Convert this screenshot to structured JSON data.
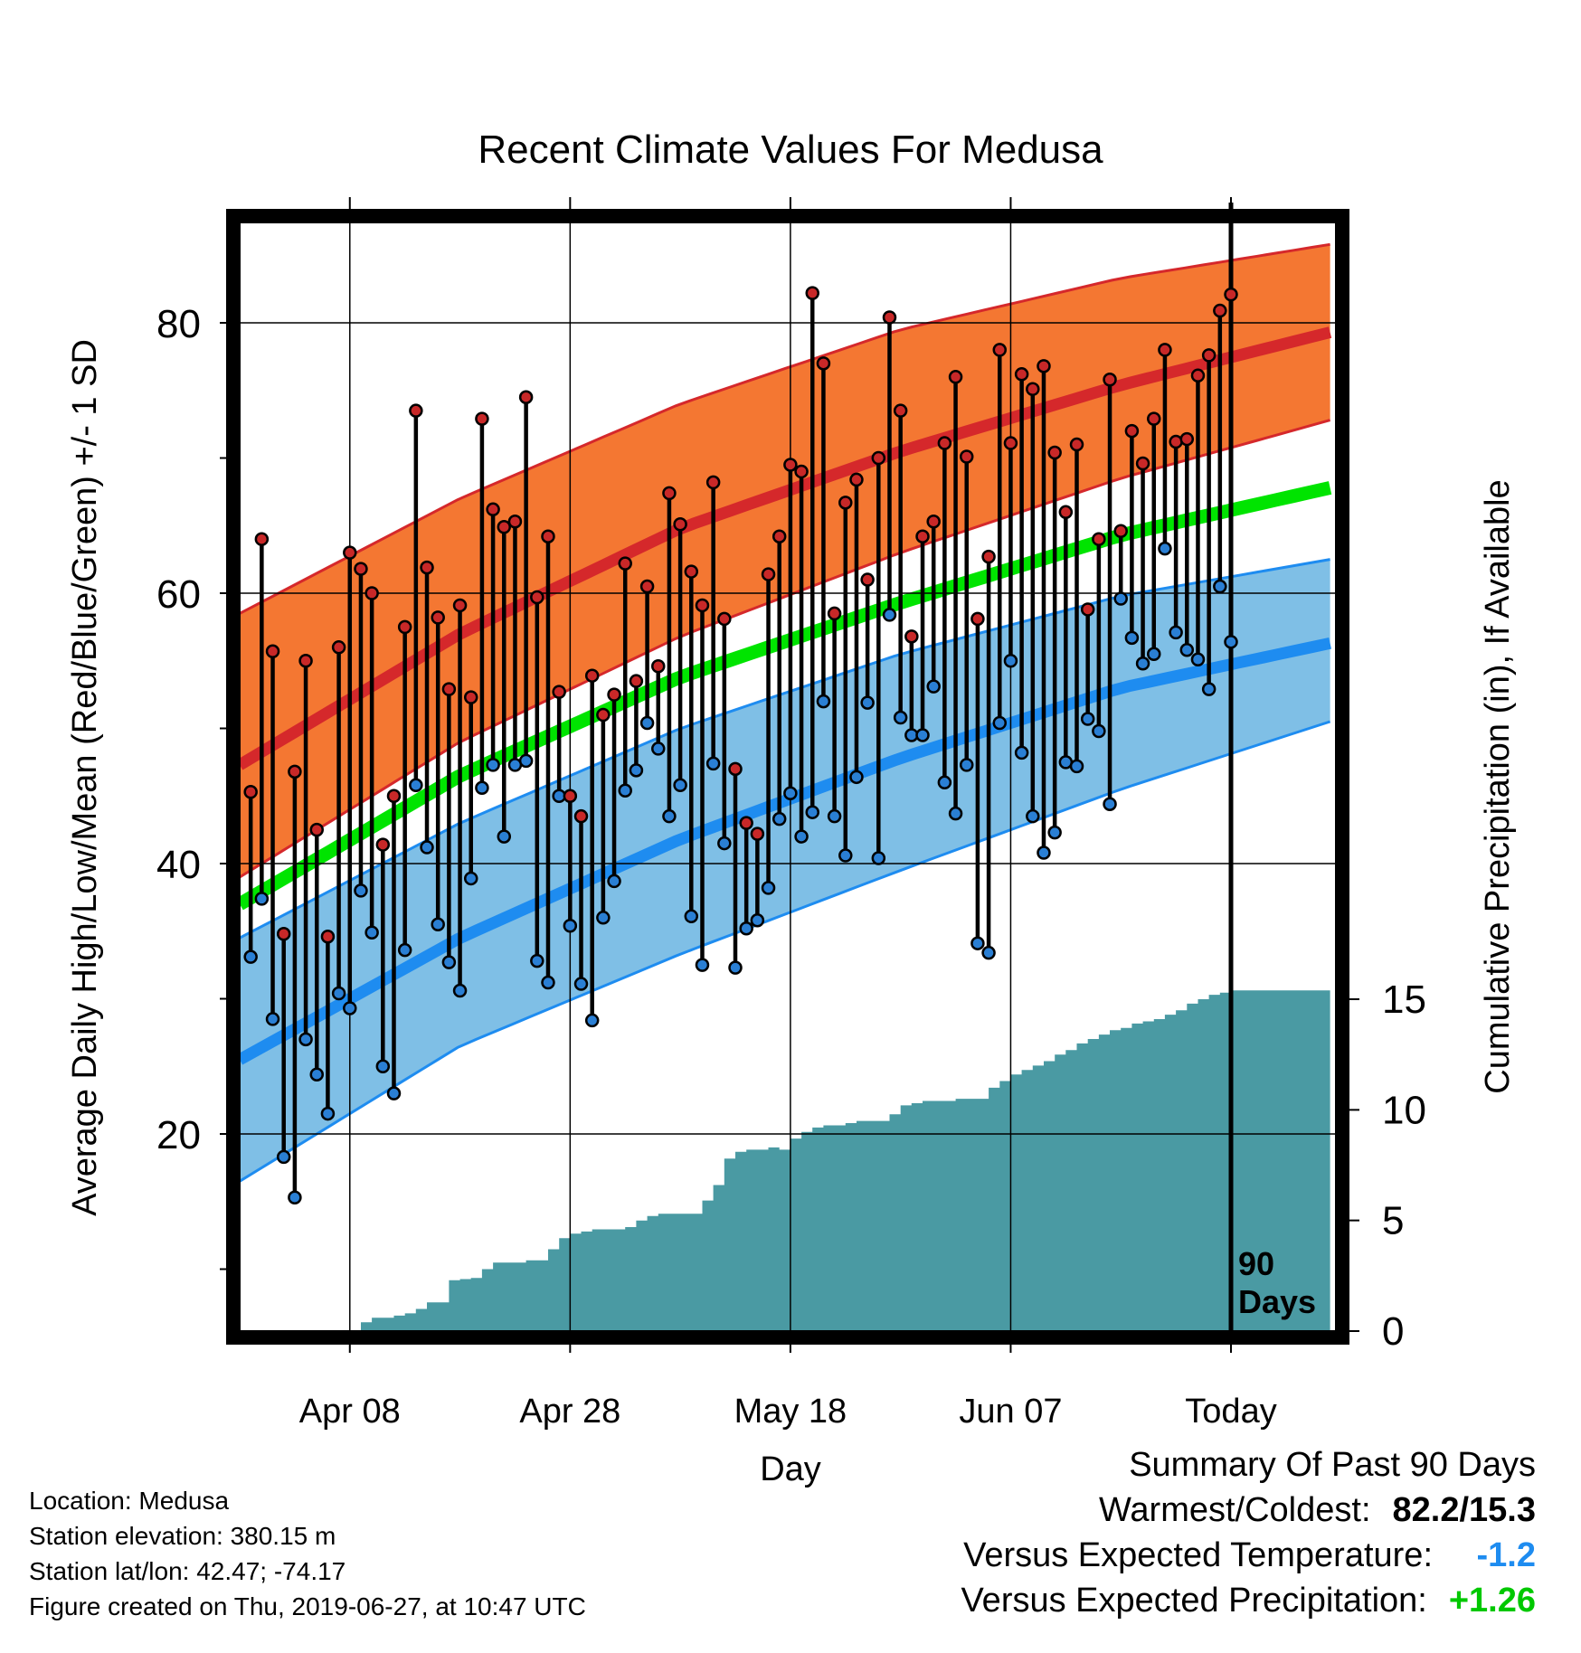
{
  "chart_data": {
    "type": "line",
    "title": "Recent Climate Values For Medusa",
    "xlabel": "Day",
    "ylabel": "Average Daily High/Low/Mean (Red/Blue/Green) +/- 1 SD",
    "y2label": "Cumulative Precipitation (in), If Available",
    "ylim": [
      5.5,
      87.5
    ],
    "y_ticks": [
      20,
      40,
      60,
      80
    ],
    "y_minor_ticks": [
      10,
      30,
      50,
      70
    ],
    "y2lim": [
      0,
      20.6
    ],
    "y2_ticks": [
      0,
      5,
      10,
      15
    ],
    "x_range": [
      -90,
      9
    ],
    "x_ticks": [
      {
        "offset": -80,
        "label": "Apr 08"
      },
      {
        "offset": -60,
        "label": "Apr 28"
      },
      {
        "offset": -40,
        "label": "May 18"
      },
      {
        "offset": -20,
        "label": "Jun 07"
      },
      {
        "offset": 0,
        "label": "Today"
      }
    ],
    "today_marker": {
      "offset": 0,
      "label_line1": "90",
      "label_line2": "Days"
    },
    "grid": true,
    "normal_high": {
      "x": [
        -90,
        -70,
        -50,
        -30,
        -10,
        9
      ],
      "mean": [
        47.3,
        57.0,
        64.8,
        70.5,
        75.4,
        79.3
      ],
      "upper": [
        58.5,
        67.0,
        74.0,
        79.5,
        83.3,
        85.8
      ],
      "lower": [
        39.0,
        49.0,
        56.8,
        63.0,
        68.5,
        72.8
      ]
    },
    "normal_mean": {
      "x": [
        -90,
        -70,
        -50,
        -30,
        -10,
        9
      ],
      "values": [
        37.0,
        46.5,
        53.8,
        59.3,
        64.3,
        67.8
      ]
    },
    "normal_low": {
      "x": [
        -90,
        -70,
        -50,
        -30,
        -10,
        9
      ],
      "mean": [
        25.5,
        34.5,
        41.8,
        47.8,
        53.0,
        56.3
      ],
      "upper": [
        34.5,
        43.0,
        50.0,
        55.5,
        59.8,
        62.5
      ],
      "lower": [
        16.5,
        26.5,
        33.3,
        39.5,
        45.5,
        50.5
      ]
    },
    "daily_highs": [
      45.3,
      64.0,
      55.7,
      34.8,
      46.8,
      55.0,
      42.5,
      34.6,
      56.0,
      63.0,
      61.8,
      60.0,
      41.4,
      45.0,
      57.5,
      73.5,
      61.9,
      58.2,
      52.9,
      59.1,
      52.3,
      72.9,
      66.2,
      64.9,
      65.3,
      74.5,
      59.7,
      64.2,
      52.7,
      45.0,
      43.5,
      53.9,
      51.0,
      52.5,
      62.2,
      53.5,
      60.5,
      54.6,
      67.4,
      65.1,
      61.6,
      59.1,
      68.2,
      58.1,
      47.0,
      43.0,
      42.2,
      61.4,
      64.2,
      69.5,
      69.0,
      82.2,
      77.0,
      58.5,
      66.7,
      68.4,
      61.0,
      70.0,
      80.4,
      73.5,
      56.8,
      64.2,
      65.3,
      71.1,
      76.0,
      70.1,
      58.1,
      62.7,
      78.0,
      71.1,
      76.2,
      75.1,
      76.8,
      70.4,
      66.0,
      71.0,
      58.8,
      64.0,
      75.8,
      64.6,
      72.0,
      69.6,
      72.9,
      78.0,
      71.2,
      71.4,
      76.1,
      77.6,
      80.9,
      82.1
    ],
    "daily_lows": [
      33.1,
      37.4,
      28.5,
      18.3,
      15.3,
      27.0,
      24.4,
      21.5,
      30.4,
      29.3,
      38.0,
      34.9,
      25.0,
      23.0,
      33.6,
      45.8,
      41.2,
      35.5,
      32.7,
      30.6,
      38.9,
      45.6,
      47.3,
      42.0,
      47.3,
      47.6,
      32.8,
      31.2,
      45.0,
      35.4,
      31.1,
      28.4,
      36.0,
      38.7,
      45.4,
      46.9,
      50.4,
      48.5,
      43.5,
      45.8,
      36.1,
      32.5,
      47.4,
      41.5,
      32.3,
      35.2,
      35.8,
      38.2,
      43.3,
      45.2,
      42.0,
      43.8,
      52.0,
      43.5,
      40.6,
      46.4,
      51.9,
      40.4,
      58.4,
      50.8,
      49.5,
      49.5,
      53.1,
      46.0,
      43.7,
      47.3,
      34.1,
      33.4,
      50.4,
      55.0,
      48.2,
      43.5,
      40.8,
      42.3,
      47.5,
      47.2,
      50.7,
      49.8,
      44.4,
      59.6,
      56.7,
      54.8,
      55.5,
      63.3,
      57.1,
      55.8,
      55.1,
      52.9,
      60.5,
      56.4
    ],
    "precipitation": {
      "x": [
        -90,
        -80,
        -79,
        -78,
        -77,
        -76,
        -75,
        -74,
        -73,
        -71,
        -70,
        -69,
        -68,
        -67,
        -66,
        -64,
        -63,
        -62,
        -61,
        -60,
        -59,
        -58,
        -55,
        -54,
        -53,
        -52,
        -49,
        -48,
        -47,
        -46,
        -45,
        -44,
        -43,
        -42,
        -41,
        -40,
        -39,
        -38,
        -37,
        -35,
        -34,
        -31,
        -30,
        -29,
        -28,
        -26,
        -25,
        -22,
        -21,
        -20,
        -19,
        -18,
        -17,
        -16,
        -15,
        -14,
        -13,
        -12,
        -11,
        -10,
        -9,
        -8,
        -7,
        -6,
        -5,
        -4,
        -3,
        -2,
        -1,
        0,
        9
      ],
      "cumulative": [
        0,
        0,
        0.4,
        0.6,
        0.6,
        0.7,
        0.8,
        1.0,
        1.3,
        2.3,
        2.35,
        2.4,
        2.8,
        3.1,
        3.1,
        3.2,
        3.2,
        3.7,
        4.2,
        4.4,
        4.5,
        4.6,
        4.7,
        5.0,
        5.2,
        5.3,
        5.3,
        5.9,
        6.6,
        7.8,
        8.1,
        8.2,
        8.2,
        8.3,
        8.2,
        8.7,
        9.0,
        9.2,
        9.3,
        9.4,
        9.5,
        9.8,
        10.2,
        10.3,
        10.4,
        10.4,
        10.5,
        11.0,
        11.3,
        11.6,
        11.8,
        12.0,
        12.2,
        12.5,
        12.7,
        13.0,
        13.2,
        13.4,
        13.6,
        13.7,
        13.9,
        14.0,
        14.1,
        14.3,
        14.5,
        14.8,
        15.0,
        15.2,
        15.3,
        15.4,
        15.4
      ]
    },
    "colors": {
      "high_band": "#f47732",
      "high_band_edge": "#d5282b",
      "high_mean": "#d5282b",
      "mean_line": "#00e400",
      "low_band": "#7fbfe6",
      "low_band_edge": "#1e8cf0",
      "low_mean": "#1e8cf0",
      "precip": "#4a9aa3",
      "high_marker": "#c82828",
      "low_marker": "#2a7fd4"
    }
  },
  "info": {
    "location": "Location: Medusa",
    "elevation": "Station elevation: 380.15 m",
    "latlon": "Station lat/lon: 42.47; -74.17",
    "created": "Figure created on Thu, 2019-06-27, at 10:47 UTC"
  },
  "summary": {
    "title": "Summary Of Past 90 Days",
    "extremes_label": "Warmest/Coldest:",
    "extremes_value": "82.2/15.3",
    "temp_label": "Versus Expected Temperature:",
    "temp_value": "-1.2",
    "temp_color": "#1e8cf0",
    "precip_label": "Versus Expected Precipitation:",
    "precip_value": "+1.26",
    "precip_color": "#00c800"
  }
}
